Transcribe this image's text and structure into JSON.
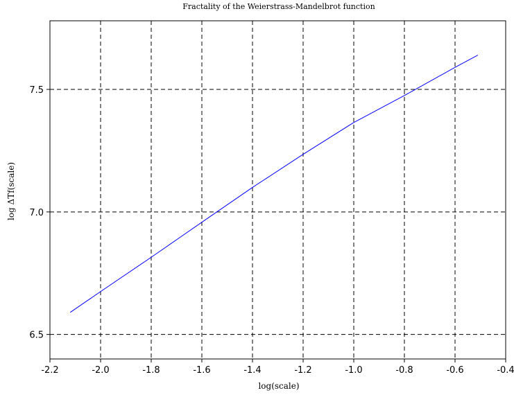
{
  "chart_data": {
    "type": "line",
    "title": "Fractality of the Weierstrass-Mandelbrot function",
    "xlabel": "log(scale)",
    "ylabel": "log ΔTf(scale)",
    "xlim": [
      -2.2,
      -0.4
    ],
    "ylim": [
      6.4,
      7.78
    ],
    "xticks": [
      -2.2,
      -2.0,
      -1.8,
      -1.6,
      -1.4,
      -1.2,
      -1.0,
      -0.8,
      -0.6,
      -0.4
    ],
    "xtick_labels": [
      "-2.2",
      "-2.0",
      "-1.8",
      "-1.6",
      "-1.4",
      "-1.2",
      "-1.0",
      "-0.8",
      "-0.6",
      "-0.4"
    ],
    "yticks": [
      6.5,
      7.0,
      7.5
    ],
    "ytick_labels": [
      "6.5",
      "7.0",
      "7.5"
    ],
    "grid": true,
    "grid_style": "dashed",
    "series": [
      {
        "color": "#0000ff",
        "x": [
          -2.12,
          -2.0,
          -1.8,
          -1.6,
          -1.4,
          -1.2,
          -1.0,
          -0.8,
          -0.6,
          -0.51
        ],
        "y": [
          6.59,
          6.675,
          6.815,
          6.958,
          7.1,
          7.235,
          7.365,
          7.475,
          7.59,
          7.64
        ]
      }
    ]
  }
}
